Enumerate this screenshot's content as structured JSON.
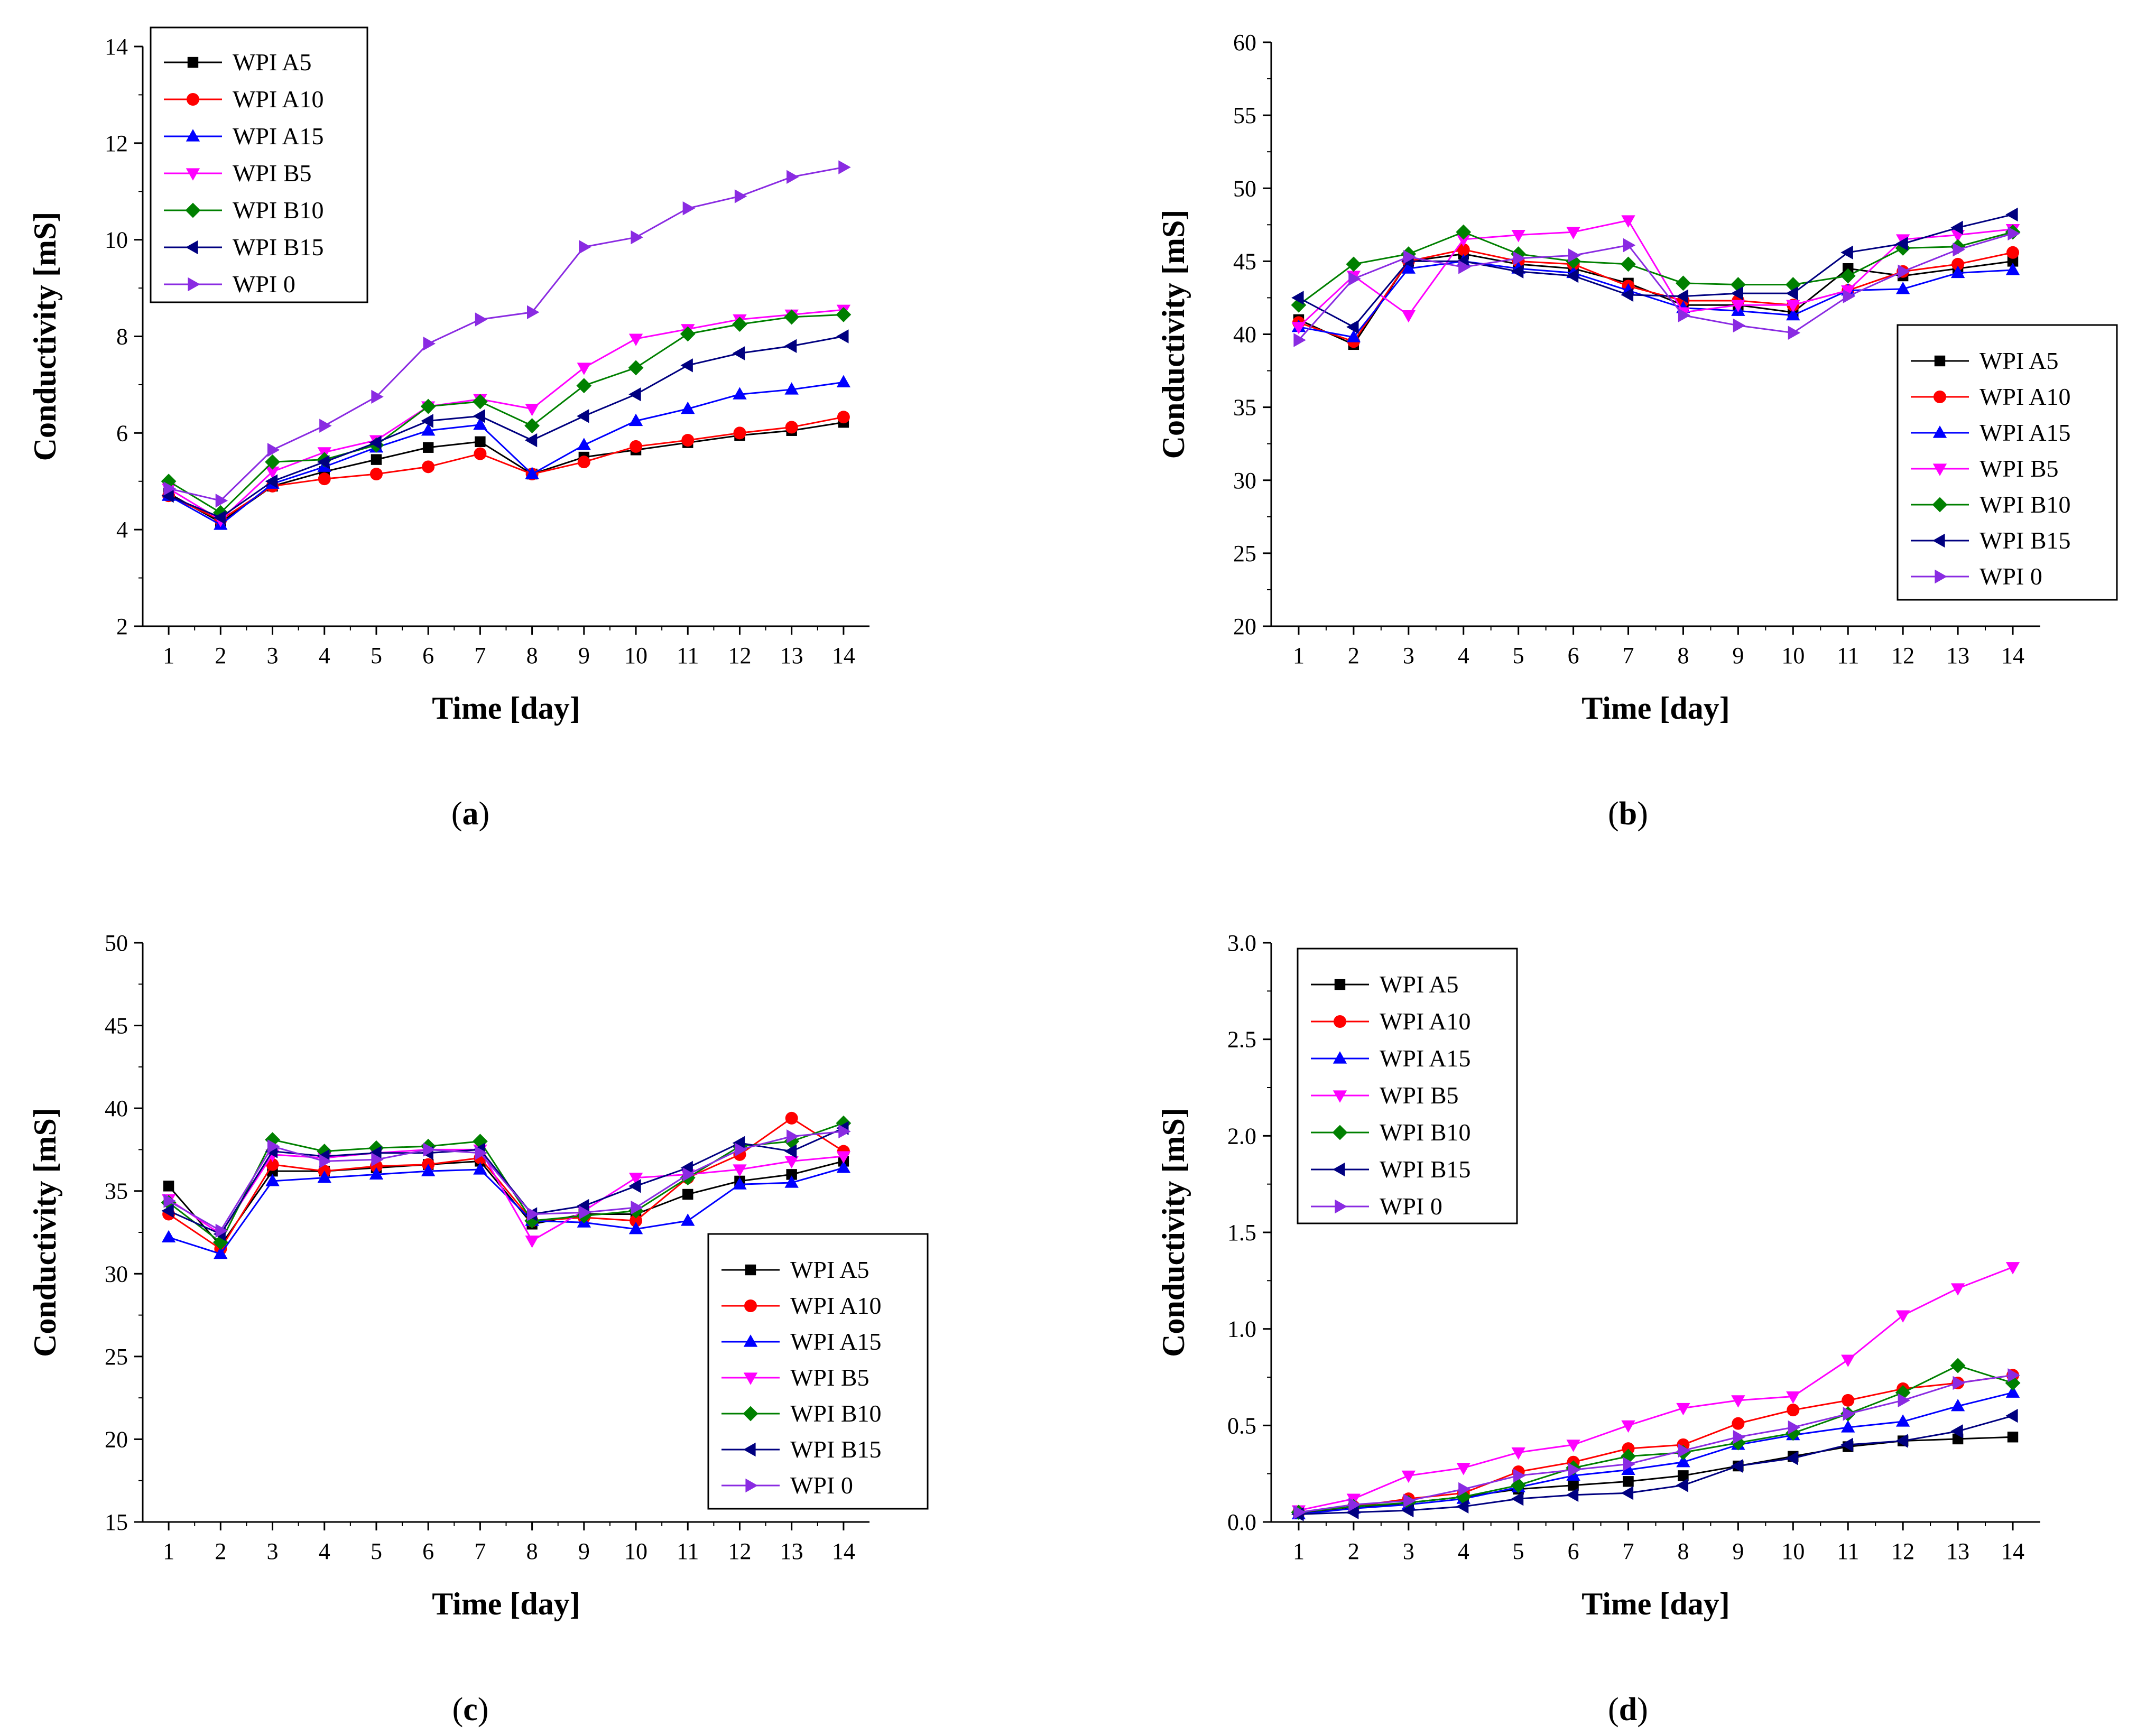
{
  "chart_data": [
    {
      "panel": "(a)",
      "panel_letter": "a",
      "type": "line",
      "xlabel": "Time [day]",
      "ylabel": "Conductivity [mS]",
      "ylim": [
        2,
        14
      ],
      "yticks": [
        2,
        4,
        6,
        8,
        10,
        12,
        14
      ],
      "xlim": [
        0.5,
        14.5
      ],
      "x": [
        1,
        2,
        3,
        4,
        5,
        6,
        7,
        8,
        9,
        10,
        11,
        12,
        13,
        14
      ],
      "legend_position": "top-left",
      "series": [
        {
          "name": "WPI A5",
          "color": "#000000",
          "marker": "square",
          "values": [
            4.75,
            4.15,
            4.9,
            5.2,
            5.45,
            5.7,
            5.82,
            5.15,
            5.5,
            5.65,
            5.8,
            5.95,
            6.05,
            6.22
          ]
        },
        {
          "name": "WPI A10",
          "color": "#ff0000",
          "marker": "circle",
          "values": [
            4.7,
            4.2,
            4.9,
            5.05,
            5.15,
            5.3,
            5.57,
            5.15,
            5.4,
            5.72,
            5.85,
            6.0,
            6.12,
            6.33
          ]
        },
        {
          "name": "WPI A15",
          "color": "#0000ff",
          "marker": "triangle-up",
          "values": [
            4.7,
            4.1,
            4.95,
            5.3,
            5.7,
            6.05,
            6.17,
            5.15,
            5.75,
            6.25,
            6.5,
            6.8,
            6.9,
            7.05
          ]
        },
        {
          "name": "WPI B5",
          "color": "#ff00ff",
          "marker": "triangle-down",
          "values": [
            4.85,
            4.2,
            5.2,
            5.6,
            5.85,
            6.55,
            6.7,
            6.5,
            7.35,
            7.95,
            8.15,
            8.35,
            8.45,
            8.55
          ]
        },
        {
          "name": "WPI B10",
          "color": "#008000",
          "marker": "diamond",
          "values": [
            5.0,
            4.35,
            5.4,
            5.45,
            5.75,
            6.55,
            6.65,
            6.15,
            6.98,
            7.35,
            8.05,
            8.25,
            8.4,
            8.45
          ]
        },
        {
          "name": "WPI B15",
          "color": "#000080",
          "marker": "triangle-left",
          "values": [
            4.7,
            4.25,
            5.0,
            5.4,
            5.8,
            6.25,
            6.35,
            5.85,
            6.35,
            6.8,
            7.4,
            7.65,
            7.8,
            8.0
          ]
        },
        {
          "name": "WPI 0",
          "color": "#8a2be2",
          "marker": "triangle-right",
          "values": [
            4.85,
            4.6,
            5.65,
            6.15,
            6.75,
            7.85,
            8.35,
            8.5,
            9.85,
            10.05,
            10.65,
            10.9,
            11.3,
            11.5
          ]
        }
      ]
    },
    {
      "panel": "(b)",
      "panel_letter": "b",
      "type": "line",
      "xlabel": "Time [day]",
      "ylabel": "Conductivity [mS]",
      "ylim": [
        20,
        60
      ],
      "yticks": [
        20,
        25,
        30,
        35,
        40,
        45,
        50,
        55,
        60
      ],
      "xlim": [
        0.5,
        14.5
      ],
      "x": [
        1,
        2,
        3,
        4,
        5,
        6,
        7,
        8,
        9,
        10,
        11,
        12,
        13,
        14
      ],
      "legend_position": "bottom-right",
      "series": [
        {
          "name": "WPI A5",
          "color": "#000000",
          "marker": "square",
          "values": [
            41.0,
            39.3,
            45.0,
            45.5,
            44.8,
            44.5,
            43.5,
            42.0,
            42.0,
            41.5,
            44.5,
            44.0,
            44.5,
            45.0
          ]
        },
        {
          "name": "WPI A10",
          "color": "#ff0000",
          "marker": "circle",
          "values": [
            40.8,
            39.5,
            45.0,
            45.8,
            45.0,
            44.8,
            43.3,
            42.3,
            42.3,
            42.0,
            43.0,
            44.3,
            44.8,
            45.6
          ]
        },
        {
          "name": "WPI A15",
          "color": "#0000ff",
          "marker": "triangle-up",
          "values": [
            40.5,
            39.8,
            44.5,
            45.0,
            44.5,
            44.2,
            43.0,
            41.8,
            41.6,
            41.3,
            43.0,
            43.1,
            44.2,
            44.4
          ]
        },
        {
          "name": "WPI B5",
          "color": "#ff00ff",
          "marker": "triangle-down",
          "values": [
            40.5,
            44.0,
            41.3,
            46.5,
            46.8,
            47.0,
            47.8,
            41.5,
            42.0,
            42.0,
            43.0,
            46.5,
            46.8,
            47.2
          ]
        },
        {
          "name": "WPI B10",
          "color": "#008000",
          "marker": "diamond",
          "values": [
            42.0,
            44.8,
            45.5,
            47.0,
            45.5,
            45.0,
            44.8,
            43.5,
            43.4,
            43.4,
            44.0,
            45.9,
            46.0,
            47.0
          ]
        },
        {
          "name": "WPI B15",
          "color": "#000080",
          "marker": "triangle-left",
          "values": [
            42.5,
            40.5,
            45.0,
            45.0,
            44.3,
            44.0,
            42.7,
            42.6,
            42.8,
            42.8,
            45.6,
            46.2,
            47.3,
            48.2
          ]
        },
        {
          "name": "WPI 0",
          "color": "#8a2be2",
          "marker": "triangle-right",
          "values": [
            39.6,
            43.8,
            45.3,
            44.6,
            45.2,
            45.4,
            46.1,
            41.3,
            40.6,
            40.1,
            42.6,
            44.3,
            45.8,
            46.9
          ]
        }
      ]
    },
    {
      "panel": "(c)",
      "panel_letter": "c",
      "type": "line",
      "xlabel": "Time [day]",
      "ylabel": "Conductivity [mS]",
      "ylim": [
        15,
        50
      ],
      "yticks": [
        15,
        20,
        25,
        30,
        35,
        40,
        45,
        50
      ],
      "xlim": [
        0.5,
        14.5
      ],
      "x": [
        1,
        2,
        3,
        4,
        5,
        6,
        7,
        8,
        9,
        10,
        11,
        12,
        13,
        14
      ],
      "legend_position": "bottom-right",
      "series": [
        {
          "name": "WPI A5",
          "color": "#000000",
          "marker": "square",
          "values": [
            35.3,
            31.7,
            36.2,
            36.2,
            36.4,
            36.6,
            36.8,
            33.0,
            33.6,
            33.6,
            34.8,
            35.6,
            36.0,
            36.8
          ]
        },
        {
          "name": "WPI A10",
          "color": "#ff0000",
          "marker": "circle",
          "values": [
            33.6,
            31.5,
            36.6,
            36.2,
            36.5,
            36.6,
            37.0,
            33.2,
            33.4,
            33.2,
            35.8,
            37.2,
            39.4,
            37.4
          ]
        },
        {
          "name": "WPI A15",
          "color": "#0000ff",
          "marker": "triangle-up",
          "values": [
            32.2,
            31.2,
            35.6,
            35.8,
            36.0,
            36.2,
            36.3,
            33.2,
            33.1,
            32.7,
            33.2,
            35.4,
            35.5,
            36.4
          ]
        },
        {
          "name": "WPI B5",
          "color": "#ff00ff",
          "marker": "triangle-down",
          "values": [
            34.5,
            32.4,
            37.2,
            37.0,
            37.3,
            37.5,
            37.5,
            32.0,
            33.8,
            35.8,
            36.0,
            36.3,
            36.8,
            37.1
          ]
        },
        {
          "name": "WPI B10",
          "color": "#008000",
          "marker": "diamond",
          "values": [
            34.3,
            31.9,
            38.1,
            37.4,
            37.6,
            37.7,
            38.0,
            33.2,
            33.5,
            33.8,
            35.8,
            37.7,
            38.0,
            39.1
          ]
        },
        {
          "name": "WPI B15",
          "color": "#000080",
          "marker": "triangle-left",
          "values": [
            33.8,
            32.4,
            37.4,
            37.1,
            37.3,
            37.3,
            37.5,
            33.6,
            34.1,
            35.3,
            36.4,
            37.9,
            37.4,
            38.8
          ]
        },
        {
          "name": "WPI 0",
          "color": "#8a2be2",
          "marker": "triangle-right",
          "values": [
            34.4,
            32.6,
            37.7,
            36.8,
            36.9,
            37.5,
            37.3,
            33.6,
            33.7,
            34.0,
            36.0,
            37.5,
            38.3,
            38.6
          ]
        }
      ]
    },
    {
      "panel": "(d)",
      "panel_letter": "d",
      "type": "line",
      "xlabel": "Time [day]",
      "ylabel": "Conductivity [mS]",
      "ylim": [
        0.0,
        3.0
      ],
      "yticks": [
        0.0,
        0.5,
        1.0,
        1.5,
        2.0,
        2.5,
        3.0
      ],
      "ytick_labels": [
        "0.0",
        "0.5",
        "1.0",
        "1.5",
        "2.0",
        "2.5",
        "3.0"
      ],
      "xlim": [
        0.5,
        14.5
      ],
      "x": [
        1,
        2,
        3,
        4,
        5,
        6,
        7,
        8,
        9,
        10,
        11,
        12,
        13,
        14
      ],
      "legend_position": "top-left",
      "series": [
        {
          "name": "WPI A5",
          "color": "#000000",
          "marker": "square",
          "values": [
            0.05,
            0.07,
            0.1,
            0.13,
            0.17,
            0.19,
            0.21,
            0.24,
            0.29,
            0.34,
            0.39,
            0.42,
            0.43,
            0.44
          ]
        },
        {
          "name": "WPI A10",
          "color": "#ff0000",
          "marker": "circle",
          "values": [
            0.05,
            0.08,
            0.12,
            0.15,
            0.26,
            0.31,
            0.38,
            0.4,
            0.51,
            0.58,
            0.63,
            0.69,
            0.72,
            0.76
          ]
        },
        {
          "name": "WPI A15",
          "color": "#0000ff",
          "marker": "triangle-up",
          "values": [
            0.04,
            0.07,
            0.09,
            0.12,
            0.18,
            0.24,
            0.27,
            0.31,
            0.4,
            0.45,
            0.49,
            0.52,
            0.6,
            0.67
          ]
        },
        {
          "name": "WPI B5",
          "color": "#ff00ff",
          "marker": "triangle-down",
          "values": [
            0.06,
            0.12,
            0.24,
            0.28,
            0.36,
            0.4,
            0.5,
            0.59,
            0.63,
            0.65,
            0.84,
            1.07,
            1.21,
            1.32
          ]
        },
        {
          "name": "WPI B10",
          "color": "#008000",
          "marker": "diamond",
          "values": [
            0.05,
            0.08,
            0.1,
            0.13,
            0.19,
            0.28,
            0.34,
            0.36,
            0.41,
            0.46,
            0.56,
            0.67,
            0.81,
            0.72
          ]
        },
        {
          "name": "WPI B15",
          "color": "#000080",
          "marker": "triangle-left",
          "values": [
            0.04,
            0.05,
            0.06,
            0.08,
            0.12,
            0.14,
            0.15,
            0.19,
            0.29,
            0.33,
            0.4,
            0.42,
            0.47,
            0.55
          ]
        },
        {
          "name": "WPI 0",
          "color": "#8a2be2",
          "marker": "triangle-right",
          "values": [
            0.05,
            0.09,
            0.11,
            0.17,
            0.24,
            0.27,
            0.3,
            0.37,
            0.44,
            0.49,
            0.56,
            0.63,
            0.72,
            0.76
          ]
        }
      ]
    }
  ]
}
